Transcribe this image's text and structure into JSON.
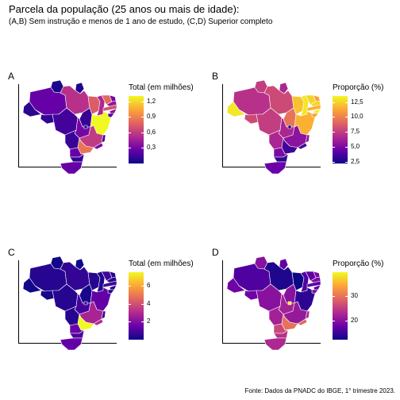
{
  "title": "Parcela da população (25 anos ou mais de idade):",
  "subtitle": "(A,B) Sem instrução e menos de 1 ano de estudo, (C,D) Superior completo",
  "caption": "Fonte: Dados da PNADC do IBGE, 1° trimestre 2023.",
  "colors": {
    "scale": [
      "#0d0887",
      "#6a00a8",
      "#b12a90",
      "#e16462",
      "#fca636",
      "#f0f921"
    ]
  },
  "chart_data": [
    {
      "type": "heatmap",
      "panel": "A",
      "legend_title": "Total (em milhões)",
      "ticks": [
        "1,2",
        "0,9",
        "0,6",
        "0,3"
      ],
      "tick_values": [
        1.2,
        0.9,
        0.6,
        0.3
      ],
      "range": [
        0.0,
        1.3
      ],
      "values": {
        "AC": 0.08,
        "AM": 0.25,
        "RR": 0.04,
        "PA": 0.55,
        "AP": 0.05,
        "TO": 0.12,
        "MA": 0.75,
        "PI": 0.5,
        "CE": 0.8,
        "RN": 0.3,
        "PB": 0.4,
        "PE": 0.7,
        "AL": 0.35,
        "SE": 0.2,
        "BA": 1.3,
        "RO": 0.1,
        "MT": 0.15,
        "MS": 0.12,
        "GO": 0.3,
        "DF": 0.05,
        "MG": 0.6,
        "ES": 0.15,
        "RJ": 0.3,
        "SP": 0.85,
        "PR": 0.25,
        "SC": 0.1,
        "RS": 0.25
      }
    },
    {
      "type": "heatmap",
      "panel": "B",
      "legend_title": "Proporção (%)",
      "ticks": [
        "12,5",
        "10,0",
        "7,5",
        "5,0",
        "2,5"
      ],
      "tick_values": [
        12.5,
        10.0,
        7.5,
        5.0,
        2.5
      ],
      "range": [
        2.2,
        13.5
      ],
      "values": {
        "AC": 13.0,
        "AM": 7.0,
        "RR": 7.5,
        "PA": 8.0,
        "AP": 6.5,
        "TO": 9.5,
        "MA": 12.0,
        "PI": 13.0,
        "CE": 12.5,
        "RN": 11.0,
        "PB": 12.5,
        "PE": 11.5,
        "AL": 13.2,
        "SE": 11.0,
        "BA": 11.5,
        "RO": 8.0,
        "MT": 7.5,
        "MS": 6.5,
        "GO": 6.5,
        "DF": 2.5,
        "MG": 5.5,
        "ES": 5.5,
        "RJ": 3.5,
        "SP": 3.5,
        "PR": 5.0,
        "SC": 3.0,
        "RS": 4.5
      }
    },
    {
      "type": "heatmap",
      "panel": "C",
      "legend_title": "Total (em milhões)",
      "ticks": [
        "6",
        "4",
        "2"
      ],
      "tick_values": [
        6,
        4,
        2
      ],
      "range": [
        0.0,
        7.5
      ],
      "values": {
        "AC": 0.1,
        "AM": 0.4,
        "RR": 0.08,
        "PA": 0.6,
        "AP": 0.08,
        "TO": 0.2,
        "MA": 0.4,
        "PI": 0.3,
        "CE": 0.8,
        "RN": 0.4,
        "PB": 0.4,
        "PE": 0.9,
        "AL": 0.3,
        "SE": 0.2,
        "BA": 1.4,
        "RO": 0.2,
        "MT": 0.4,
        "MS": 0.4,
        "GO": 0.9,
        "DF": 0.8,
        "MG": 2.8,
        "ES": 0.6,
        "RJ": 3.0,
        "SP": 7.5,
        "PR": 1.5,
        "SC": 1.0,
        "RS": 1.4
      }
    },
    {
      "type": "heatmap",
      "panel": "D",
      "legend_title": "Proporção (%)",
      "ticks": [
        "30",
        "20"
      ],
      "tick_values": [
        30,
        20
      ],
      "range": [
        12.0,
        40.0
      ],
      "values": {
        "AC": 18,
        "AM": 16,
        "RR": 20,
        "PA": 13,
        "AP": 17,
        "TO": 20,
        "MA": 12,
        "PI": 16,
        "CE": 17,
        "RN": 19,
        "PB": 19,
        "PE": 17,
        "AL": 16,
        "SE": 19,
        "BA": 14,
        "RO": 18,
        "MT": 20,
        "MS": 22,
        "GO": 22,
        "DF": 40,
        "MG": 21,
        "ES": 23,
        "RJ": 29,
        "SP": 30,
        "PR": 26,
        "SC": 24,
        "RS": 23
      }
    }
  ]
}
